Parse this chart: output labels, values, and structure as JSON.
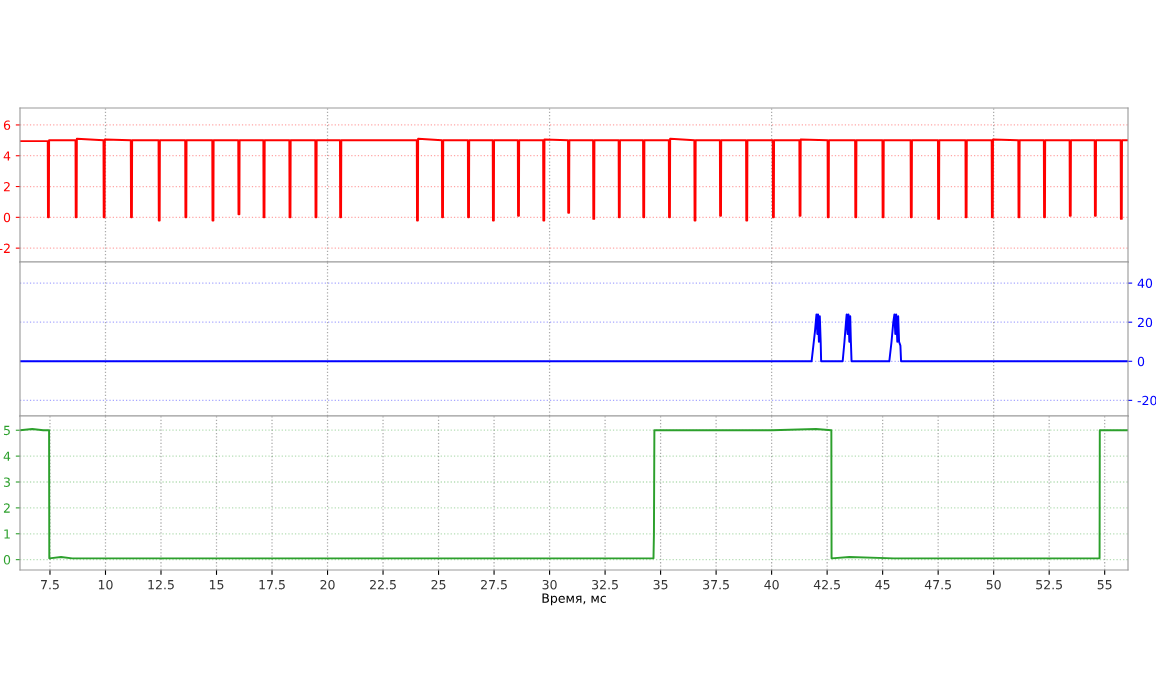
{
  "chart_data": [
    {
      "type": "line",
      "xlim": [
        6.15,
        56.05
      ],
      "ylim": [
        -2.9,
        7.1
      ],
      "yticks": [
        -2,
        0,
        2,
        4,
        6
      ],
      "tick_labels": "y",
      "grid": true,
      "line_style": "solid",
      "series": [
        {
          "color": "#ff0000",
          "x": [
            6.15,
            7.4,
            7.41,
            7.45,
            7.46,
            8.65,
            8.66,
            8.7,
            8.71,
            9.91,
            9.92,
            9.96,
            9.97,
            11.14,
            11.15,
            11.19,
            11.2,
            12.39,
            12.4,
            12.44,
            12.45,
            13.59,
            13.6,
            13.64,
            13.65,
            14.81,
            14.82,
            14.86,
            14.87,
            15.98,
            15.99,
            16.03,
            16.04,
            17.11,
            17.12,
            17.16,
            17.17,
            18.28,
            18.29,
            18.33,
            18.34,
            19.45,
            19.46,
            19.5,
            19.51,
            20.56,
            20.57,
            20.61,
            20.62,
            24.02,
            24.03,
            24.07,
            24.08,
            25.15,
            25.16,
            25.2,
            25.21,
            26.32,
            26.33,
            26.37,
            26.38,
            27.44,
            27.45,
            27.49,
            27.5,
            28.57,
            28.58,
            28.62,
            28.63,
            29.71,
            29.72,
            29.76,
            29.77,
            30.83,
            30.84,
            30.88,
            30.89,
            31.96,
            31.97,
            32.01,
            32.02,
            33.11,
            33.12,
            33.16,
            33.17,
            34.21,
            34.22,
            34.26,
            34.27,
            35.37,
            35.38,
            35.42,
            35.43,
            36.52,
            36.53,
            36.57,
            36.58,
            37.67,
            37.68,
            37.72,
            37.73,
            38.85,
            38.86,
            38.9,
            38.91,
            40.05,
            40.06,
            40.1,
            40.11,
            41.25,
            41.26,
            41.3,
            41.31,
            42.52,
            42.53,
            42.57,
            42.58,
            43.76,
            43.77,
            43.81,
            43.82,
            44.99,
            45.0,
            45.04,
            45.05,
            46.26,
            46.27,
            46.31,
            46.32,
            47.49,
            47.5,
            47.54,
            47.55,
            48.73,
            48.74,
            48.78,
            48.79,
            49.91,
            49.92,
            49.96,
            49.97,
            51.11,
            51.12,
            51.16,
            51.17,
            52.26,
            52.27,
            52.31,
            52.32,
            53.42,
            53.43,
            53.47,
            53.48,
            54.55,
            54.56,
            54.6,
            54.61,
            55.72,
            55.73,
            55.77,
            55.78,
            56.05
          ],
          "values": [
            4.95,
            4.95,
            0,
            0,
            5.0,
            5.0,
            0,
            0,
            5.1,
            5.0,
            0,
            0,
            5.05,
            5.0,
            0,
            0,
            5.0,
            5.0,
            -0.2,
            -0.2,
            5.0,
            5.0,
            0,
            0,
            5.0,
            5.0,
            -0.2,
            -0.2,
            5.0,
            5.0,
            0.2,
            0.2,
            5.0,
            5.0,
            0,
            0,
            5.0,
            5.0,
            0,
            0,
            5.0,
            5.0,
            0,
            0,
            5.0,
            5.0,
            0,
            0,
            5.0,
            5.0,
            -0.2,
            -0.2,
            5.1,
            5.0,
            0,
            0,
            5.0,
            5.0,
            0,
            0,
            5.0,
            5.0,
            -0.2,
            -0.2,
            5.0,
            5.0,
            0.1,
            0.1,
            5.0,
            5.0,
            -0.2,
            -0.2,
            5.05,
            5.0,
            0.3,
            0.3,
            5.0,
            5.0,
            -0.1,
            -0.1,
            5.0,
            5.0,
            0,
            0,
            5.0,
            5.0,
            0,
            0,
            5.0,
            5.0,
            0,
            0,
            5.1,
            5.0,
            -0.2,
            -0.2,
            5.0,
            5.0,
            0.1,
            0.1,
            5.0,
            5.0,
            -0.2,
            -0.2,
            5.0,
            5.0,
            0,
            0,
            5.0,
            5.0,
            0.1,
            0.1,
            5.05,
            5.0,
            0,
            0,
            5.0,
            5.0,
            0,
            0,
            5.0,
            5.0,
            0,
            0,
            5.0,
            5.0,
            0,
            0,
            5.0,
            5.0,
            -0.1,
            -0.1,
            5.0,
            5.0,
            0,
            0,
            5.0,
            5.0,
            0,
            0,
            5.05,
            5.0,
            0,
            0,
            5.0,
            5.0,
            0,
            0,
            5.0,
            5.0,
            0.1,
            0.1,
            5.0,
            5.0,
            0.1,
            0.1,
            5.0,
            5.0,
            -0.1,
            -0.1,
            5.0,
            5.0
          ]
        }
      ]
    },
    {
      "type": "line",
      "xlim": [
        6.15,
        56.05
      ],
      "ylim": [
        -28,
        50.8
      ],
      "yticks": [
        -20,
        0,
        20,
        40
      ],
      "tick_labels": "y",
      "grid": true,
      "line_style": "solid",
      "series": [
        {
          "color": "#0000ff",
          "x": [
            6.15,
            41.8,
            41.88,
            41.95,
            42.02,
            42.06,
            42.09,
            42.13,
            42.17,
            42.21,
            42.23,
            43.2,
            43.28,
            43.35,
            43.38,
            43.42,
            43.46,
            43.5,
            43.54,
            43.57,
            43.6,
            45.3,
            45.4,
            45.48,
            45.53,
            45.57,
            45.61,
            45.66,
            45.7,
            45.74,
            45.8,
            45.83,
            56.05
          ],
          "values": [
            0,
            0,
            8,
            15,
            24,
            14,
            24,
            10,
            23,
            10,
            0,
            0,
            10,
            20,
            24,
            14,
            24,
            10,
            23,
            10,
            0,
            0,
            10,
            20,
            24,
            14,
            24,
            10,
            23,
            10,
            8,
            0,
            0
          ]
        }
      ]
    },
    {
      "type": "line",
      "xlim": [
        6.15,
        56.05
      ],
      "ylim": [
        -0.4,
        5.55
      ],
      "yticks": [
        0,
        1,
        2,
        3,
        4,
        5
      ],
      "xticks": [
        {
          "value": 7.5,
          "label": "7.5"
        },
        10,
        {
          "value": 12.5,
          "label": "12.5"
        },
        15,
        {
          "value": 17.5,
          "label": "17.5"
        },
        20,
        {
          "value": 22.5,
          "label": "22.5"
        },
        25,
        {
          "value": 27.5,
          "label": "27.5"
        },
        30,
        {
          "value": 32.5,
          "label": "32.5"
        },
        35,
        {
          "value": 37.5,
          "label": "37.5"
        },
        40,
        {
          "value": 42.5,
          "label": "42.5"
        },
        45,
        {
          "value": 47.5,
          "label": "47.5"
        },
        50,
        {
          "value": 52.5,
          "label": "52.5"
        },
        55
      ],
      "xlabel": "Время, мс",
      "grid": true,
      "line_style": "solid",
      "series": [
        {
          "color": "#2ca02c",
          "x": [
            6.15,
            6.7,
            7.2,
            7.46,
            7.47,
            8.0,
            8.5,
            34.68,
            34.7,
            34.72,
            40.0,
            42.0,
            42.69,
            42.7,
            43.5,
            45.5,
            54.77,
            54.78,
            56.05
          ],
          "values": [
            5.0,
            5.05,
            5.0,
            5.0,
            0.05,
            0.1,
            0.05,
            0.05,
            1.0,
            5.0,
            5.0,
            5.05,
            5.0,
            0.05,
            0.1,
            0.05,
            0.05,
            5.0,
            5.0
          ]
        }
      ]
    }
  ]
}
